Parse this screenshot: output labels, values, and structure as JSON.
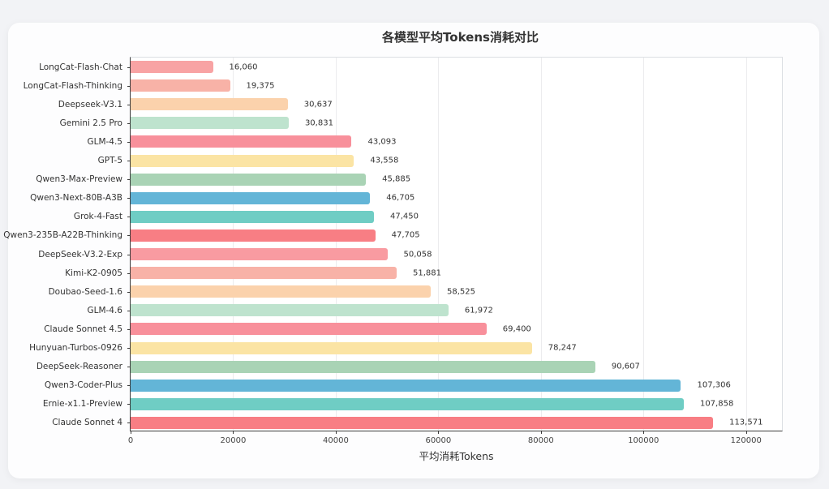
{
  "page": {
    "background": "#f2f3f6",
    "card_background": "#fdfdfe"
  },
  "chart_data": {
    "type": "bar",
    "orientation": "horizontal",
    "title": "各模型平均Tokens消耗对比",
    "xlabel": "平均消耗Tokens",
    "xlim": [
      0,
      127000
    ],
    "xticks": [
      0,
      20000,
      40000,
      60000,
      80000,
      100000,
      120000
    ],
    "xtick_labels": [
      "0",
      "20000",
      "40000",
      "60000",
      "80000",
      "100000",
      "120000"
    ],
    "grid": "vertical-light",
    "legend": "none",
    "categories": [
      "LongCat-Flash-Chat",
      "LongCat-Flash-Thinking",
      "Deepseek-V3.1",
      "Gemini 2.5 Pro",
      "GLM-4.5",
      "GPT-5",
      "Qwen3-Max-Preview",
      "Qwen3-Next-80B-A3B",
      "Grok-4-Fast",
      "Qwen3-235B-A22B-Thinking",
      "DeepSeek-V3.2-Exp",
      "Kimi-K2-0905",
      "Doubao-Seed-1.6",
      "GLM-4.6",
      "Claude Sonnet 4.5",
      "Hunyuan-Turbos-0926",
      "DeepSeek-Reasoner",
      "Qwen3-Coder-Plus",
      "Ernie-x1.1-Preview",
      "Claude Sonnet 4"
    ],
    "values": [
      16060,
      19375,
      30637,
      30831,
      43093,
      43558,
      45885,
      46705,
      47450,
      47705,
      50058,
      51881,
      58525,
      61972,
      69400,
      78247,
      90607,
      107306,
      107858,
      113571
    ],
    "value_labels": [
      "16,060",
      "19,375",
      "30,637",
      "30,831",
      "43,093",
      "43,558",
      "45,885",
      "46,705",
      "47,450",
      "47,705",
      "50,058",
      "51,881",
      "58,525",
      "61,972",
      "69,400",
      "78,247",
      "90,607",
      "107,306",
      "107,858",
      "113,571"
    ],
    "bar_colors": [
      "#F8A3A4",
      "#F8B2A7",
      "#FBD2AC",
      "#BEE3CE",
      "#F8909B",
      "#FBE4A4",
      "#A9D3B5",
      "#63B5D7",
      "#6FCDC4",
      "#F87E84",
      "#F99BA1",
      "#F8B2A7",
      "#FBD2AC",
      "#BEE3CE",
      "#F8909B",
      "#FBE4A4",
      "#A9D3B5",
      "#63B5D7",
      "#6FCDC4",
      "#F87E84"
    ],
    "grid_color": "#ececee",
    "axis_color": "#3c3c3c"
  }
}
